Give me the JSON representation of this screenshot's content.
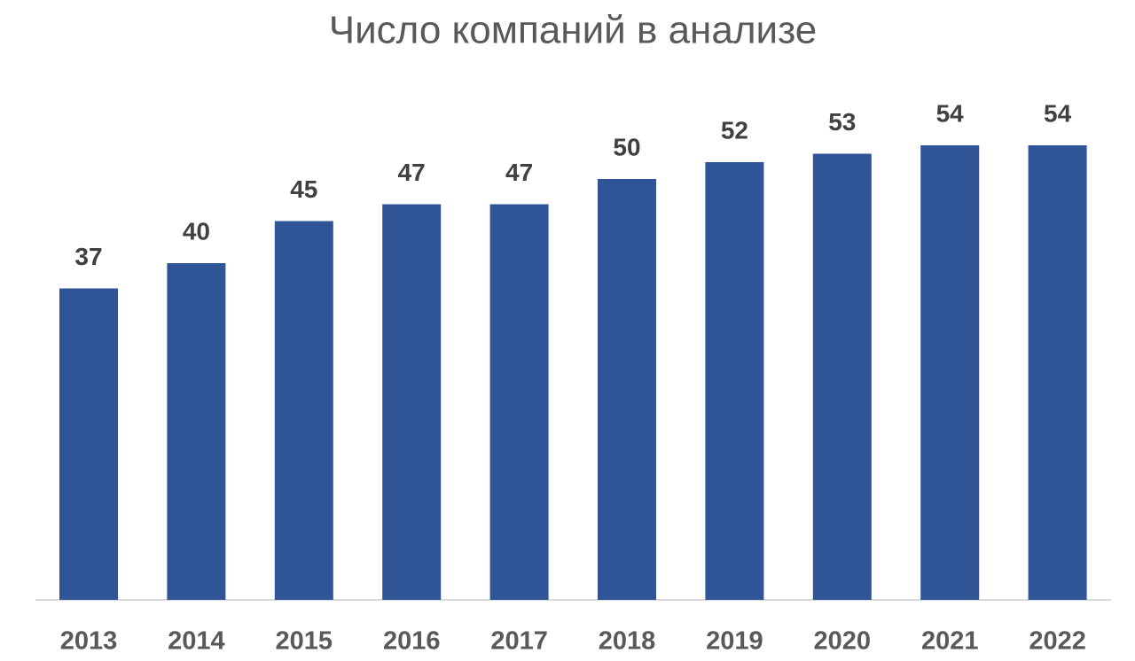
{
  "chart_data": {
    "type": "bar",
    "title": "Число компаний в анализе",
    "categories": [
      "2013",
      "2014",
      "2015",
      "2016",
      "2017",
      "2018",
      "2019",
      "2020",
      "2021",
      "2022"
    ],
    "values": [
      37,
      40,
      45,
      47,
      47,
      50,
      52,
      53,
      54,
      54
    ],
    "color": "#2f5597"
  }
}
